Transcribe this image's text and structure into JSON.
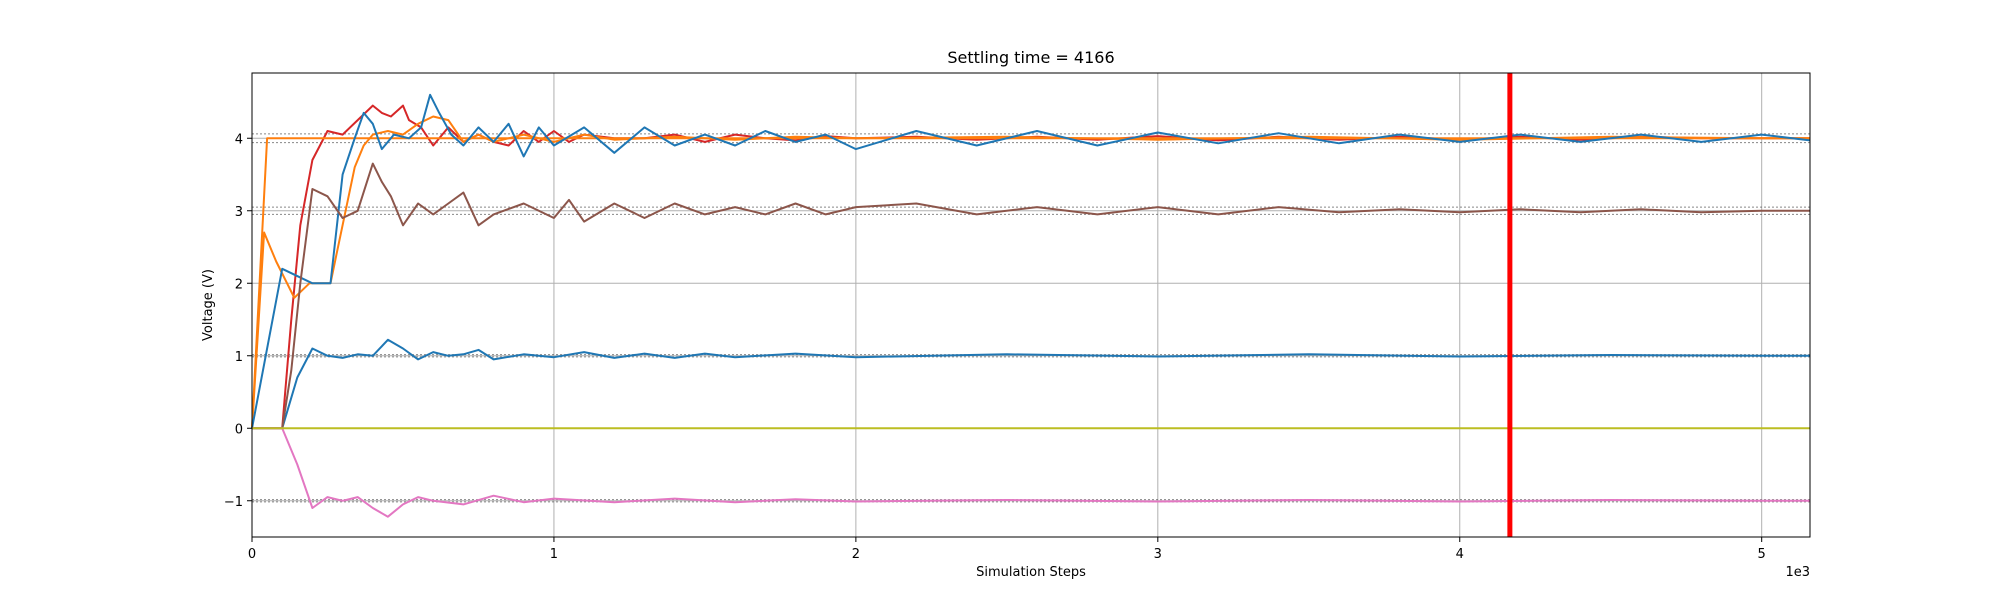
{
  "chart_data": {
    "type": "line",
    "title": "Settling time = 4166",
    "xlabel": "Simulation Steps",
    "ylabel": "Voltage (V)",
    "x_offset_label": "1e3",
    "xlim": [
      0,
      5160
    ],
    "ylim": [
      -1.5,
      4.9
    ],
    "x_ticks": [
      0,
      1000,
      2000,
      3000,
      4000,
      5000
    ],
    "x_tick_labels": [
      "0",
      "1",
      "2",
      "3",
      "4",
      "5"
    ],
    "y_ticks": [
      -1,
      0,
      1,
      2,
      3,
      4
    ],
    "y_tick_labels": [
      "−1",
      "0",
      "1",
      "2",
      "3",
      "4"
    ],
    "grid": true,
    "settling_time": 4166,
    "settling_marker_color": "#ff0000",
    "tolerance_bands": [
      {
        "target": 4,
        "low": 3.94,
        "high": 4.06
      },
      {
        "target": 3,
        "low": 2.95,
        "high": 3.05
      },
      {
        "target": 1,
        "low": 0.985,
        "high": 1.015
      },
      {
        "target": -1,
        "low": -1.015,
        "high": -0.985
      }
    ],
    "series": [
      {
        "color": "#d62728",
        "x": [
          0,
          100,
          110,
          130,
          160,
          200,
          250,
          300,
          350,
          400,
          430,
          460,
          500,
          520,
          560,
          600,
          650,
          700,
          750,
          800,
          850,
          900,
          950,
          1000,
          1050,
          1100,
          1200,
          1300,
          1400,
          1500,
          1600,
          1700,
          1800,
          1900,
          2000,
          2200,
          2400,
          2600,
          2800,
          3000,
          3200,
          3400,
          3600,
          3800,
          4000,
          4200,
          4400,
          4600,
          4800,
          5000,
          5160
        ],
        "y": [
          0,
          0,
          0.5,
          1.5,
          2.8,
          3.7,
          4.1,
          4.05,
          4.25,
          4.45,
          4.35,
          4.3,
          4.45,
          4.25,
          4.15,
          3.9,
          4.15,
          3.95,
          4.05,
          3.95,
          3.9,
          4.1,
          3.95,
          4.1,
          3.95,
          4.05,
          4.0,
          4.0,
          4.05,
          3.95,
          4.05,
          4.0,
          3.97,
          4.03,
          4.0,
          4.02,
          3.98,
          4.02,
          3.98,
          4.03,
          3.97,
          4.02,
          3.98,
          4.02,
          3.98,
          4.02,
          3.98,
          4.02,
          4.0,
          4.0,
          4.0
        ]
      },
      {
        "color": "#ff7f0e",
        "x": [
          0,
          40,
          80,
          140,
          190,
          240,
          260,
          280,
          310,
          340,
          370,
          400,
          450,
          500,
          550,
          600,
          650,
          700,
          750,
          800,
          850,
          900,
          1000,
          1100,
          1200,
          1400,
          1600,
          1800,
          2000,
          2500,
          3000,
          3500,
          4000,
          4500,
          5000,
          5160
        ],
        "y": [
          0,
          2.7,
          2.3,
          1.8,
          2.0,
          2.0,
          2.0,
          2.4,
          3.0,
          3.6,
          3.9,
          4.05,
          4.1,
          4.05,
          4.2,
          4.3,
          4.25,
          3.95,
          4.05,
          3.95,
          4.0,
          4.05,
          3.95,
          4.05,
          3.98,
          4.02,
          3.98,
          4.02,
          4.0,
          4.02,
          3.98,
          4.02,
          3.98,
          4.02,
          4.0,
          4.0
        ]
      },
      {
        "color": "#ff7f0e",
        "x": [
          0,
          50,
          5160
        ],
        "y": [
          0,
          4.0,
          4.0
        ]
      },
      {
        "color": "#1f77b4",
        "x": [
          0,
          100,
          200,
          260,
          300,
          340,
          370,
          400,
          430,
          470,
          520,
          560,
          590,
          620,
          660,
          700,
          750,
          800,
          850,
          900,
          950,
          1000,
          1100,
          1200,
          1300,
          1400,
          1500,
          1600,
          1700,
          1800,
          1900,
          2000,
          2200,
          2400,
          2600,
          2800,
          3000,
          3200,
          3400,
          3600,
          3800,
          4000,
          4200,
          4400,
          4600,
          4800,
          5000,
          5160
        ],
        "y": [
          0,
          2.2,
          2.0,
          2.0,
          3.5,
          4.0,
          4.35,
          4.2,
          3.85,
          4.05,
          4.0,
          4.15,
          4.6,
          4.35,
          4.05,
          3.9,
          4.15,
          3.95,
          4.2,
          3.75,
          4.15,
          3.9,
          4.15,
          3.8,
          4.15,
          3.9,
          4.05,
          3.9,
          4.1,
          3.95,
          4.05,
          3.85,
          4.1,
          3.9,
          4.1,
          3.9,
          4.08,
          3.93,
          4.07,
          3.93,
          4.05,
          3.95,
          4.05,
          3.95,
          4.05,
          3.95,
          4.05,
          3.97
        ]
      },
      {
        "color": "#1f77b4",
        "x": [
          0,
          100,
          150,
          200,
          250,
          300,
          350,
          400,
          450,
          500,
          550,
          600,
          650,
          700,
          750,
          800,
          900,
          1000,
          1100,
          1200,
          1300,
          1400,
          1500,
          1600,
          1800,
          2000,
          2500,
          3000,
          3500,
          4000,
          4500,
          5000,
          5160
        ],
        "y": [
          0,
          0,
          0.7,
          1.1,
          1.0,
          0.97,
          1.02,
          1.0,
          1.22,
          1.1,
          0.95,
          1.05,
          1.0,
          1.02,
          1.08,
          0.95,
          1.02,
          0.98,
          1.05,
          0.97,
          1.03,
          0.97,
          1.03,
          0.98,
          1.03,
          0.98,
          1.02,
          0.99,
          1.02,
          0.99,
          1.01,
          1.0,
          1.0
        ]
      },
      {
        "color": "#8c564b",
        "x": [
          0,
          100,
          130,
          160,
          200,
          250,
          300,
          350,
          400,
          430,
          460,
          500,
          550,
          600,
          650,
          700,
          750,
          800,
          900,
          1000,
          1050,
          1100,
          1200,
          1300,
          1400,
          1500,
          1600,
          1700,
          1800,
          1900,
          2000,
          2200,
          2400,
          2600,
          2800,
          3000,
          3200,
          3400,
          3600,
          3800,
          4000,
          4200,
          4400,
          4600,
          4800,
          5000,
          5160
        ],
        "y": [
          0,
          0,
          0.8,
          2.0,
          3.3,
          3.2,
          2.9,
          3.0,
          3.65,
          3.4,
          3.2,
          2.8,
          3.1,
          2.95,
          3.1,
          3.25,
          2.8,
          2.95,
          3.1,
          2.9,
          3.15,
          2.85,
          3.1,
          2.9,
          3.1,
          2.95,
          3.05,
          2.95,
          3.1,
          2.95,
          3.05,
          3.1,
          2.95,
          3.05,
          2.95,
          3.05,
          2.95,
          3.05,
          2.98,
          3.02,
          2.98,
          3.02,
          2.98,
          3.02,
          2.98,
          3.0,
          3.0
        ]
      },
      {
        "color": "#e377c2",
        "x": [
          0,
          100,
          150,
          200,
          250,
          300,
          350,
          400,
          450,
          500,
          550,
          600,
          700,
          800,
          900,
          1000,
          1200,
          1400,
          1600,
          1800,
          2000,
          2500,
          3000,
          3500,
          4000,
          4500,
          5000,
          5160
        ],
        "y": [
          0,
          0,
          -0.5,
          -1.1,
          -0.95,
          -1.0,
          -0.95,
          -1.1,
          -1.22,
          -1.05,
          -0.95,
          -1.0,
          -1.05,
          -0.93,
          -1.02,
          -0.97,
          -1.02,
          -0.97,
          -1.02,
          -0.98,
          -1.01,
          -0.99,
          -1.01,
          -0.99,
          -1.01,
          -0.99,
          -1.0,
          -1.0
        ]
      },
      {
        "color": "#bcbd22",
        "x": [
          0,
          5160
        ],
        "y": [
          0,
          0
        ]
      }
    ]
  }
}
